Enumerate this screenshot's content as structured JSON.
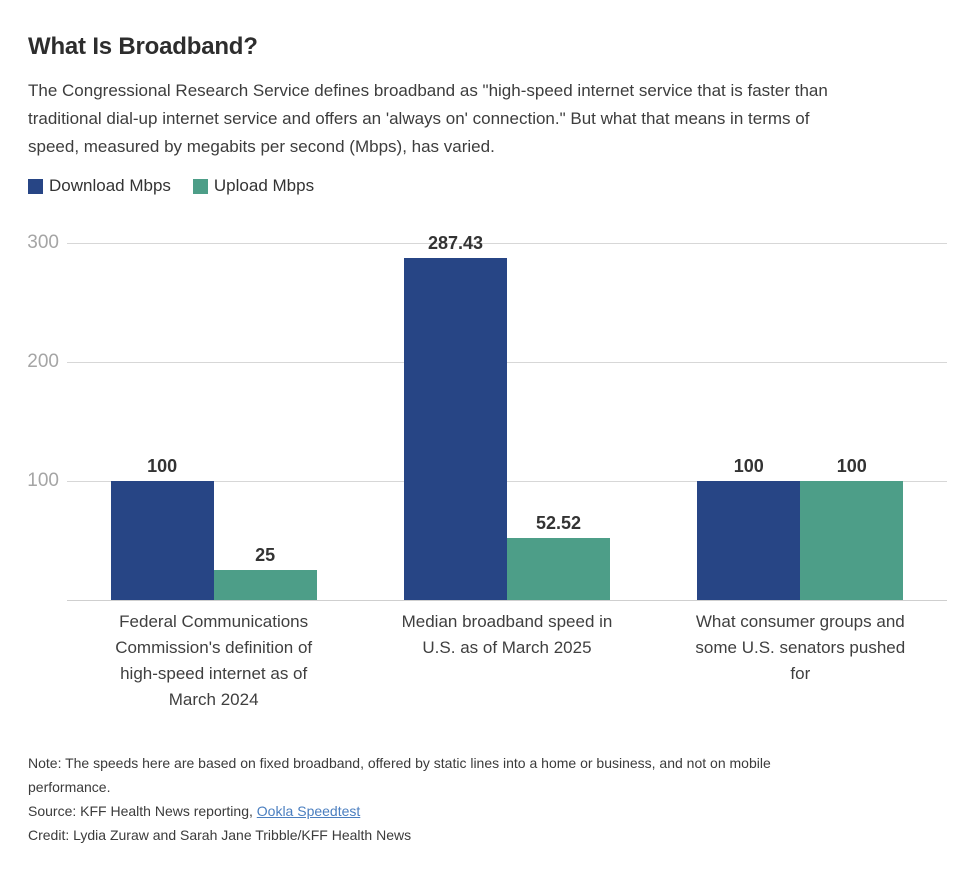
{
  "header": {
    "title": "What Is Broadband?",
    "description": "The Congressional Research Service defines broadband as \"high-speed internet service that is faster than traditional dial-up internet service and offers an 'always on' connection.\" But what that means in terms of speed, measured by megabits per second (Mbps), has varied."
  },
  "chart_data": {
    "type": "bar",
    "categories": [
      "Federal Communications Commission's definition of high-speed internet as of March 2024",
      "Median broadband speed in U.S. as of March 2025",
      "What consumer groups and some U.S. senators pushed for"
    ],
    "series": [
      {
        "name": "Download Mbps",
        "color": "#274585",
        "values": [
          100,
          287.43,
          100
        ],
        "labels": [
          "100",
          "287.43",
          "100"
        ]
      },
      {
        "name": "Upload Mbps",
        "color": "#4d9e88",
        "values": [
          25,
          52.52,
          100
        ],
        "labels": [
          "25",
          "52.52",
          "100"
        ]
      }
    ],
    "ylim": [
      0,
      300
    ],
    "yticks": [
      100,
      200,
      300
    ],
    "grid": "horizontal",
    "legend_position": "top-left",
    "xlabel": "",
    "ylabel": ""
  },
  "footer": {
    "note": "Note: The speeds here are based on fixed broadband, offered by static lines into a home or business, and not on mobile performance.",
    "source_prefix": "Source: KFF Health News reporting, ",
    "source_link_label": "Ookla Speedtest",
    "credit": "Credit: Lydia Zuraw and Sarah Jane Tribble/KFF Health News"
  }
}
